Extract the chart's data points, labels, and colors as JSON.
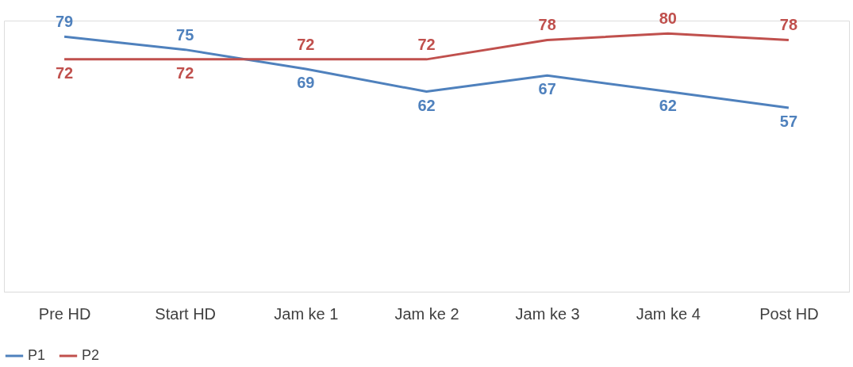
{
  "chart_data": {
    "type": "line",
    "categories": [
      "Pre HD",
      "Start HD",
      "Jam ke 1",
      "Jam ke 2",
      "Jam ke 3",
      "Jam ke 4",
      "Post HD"
    ],
    "series": [
      {
        "name": "P1",
        "color": "#4f81bd",
        "values": [
          79,
          75,
          69,
          62,
          67,
          62,
          57
        ]
      },
      {
        "name": "P2",
        "color": "#c0504d",
        "values": [
          72,
          72,
          72,
          72,
          78,
          80,
          78
        ]
      }
    ],
    "ylim": [
      0,
      84
    ],
    "data_labels": true,
    "legend": "bottom",
    "grid": false,
    "tick_labels": "x",
    "marker": "none",
    "line_style": "solid"
  }
}
